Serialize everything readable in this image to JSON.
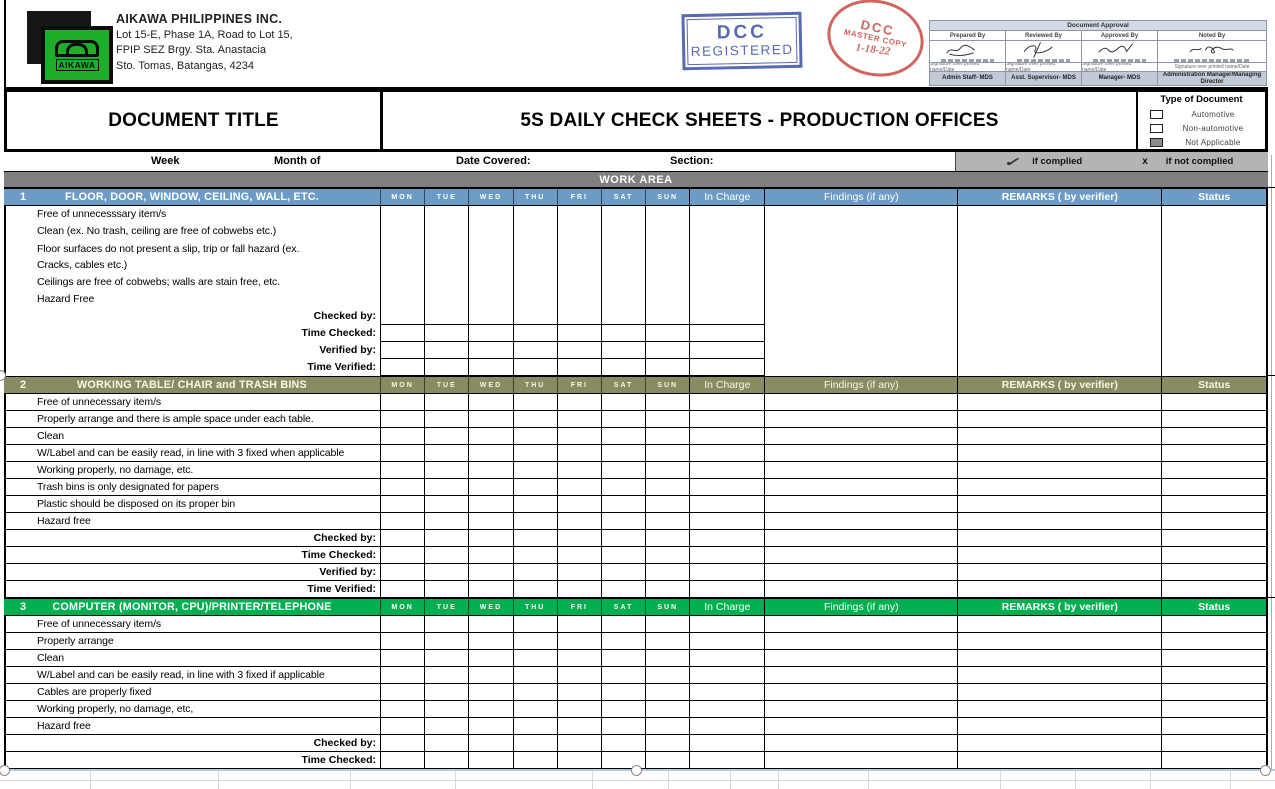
{
  "company": {
    "name": "AIKAWA PHILIPPINES INC.",
    "address_lines": [
      "Lot 15-E, Phase 1A, Road to Lot 15,",
      "FPIP SEZ Brgy. Sta. Anastacia",
      "Sto. Tomas, Batangas, 4234"
    ],
    "logo_text": "AIKAWA",
    "logo_green": "#1fae2a"
  },
  "stamps": {
    "dcc_registered": {
      "line1": "DCC",
      "line2": "REGISTERED",
      "color": "#4356aa"
    },
    "master_copy": {
      "line1": "DCC",
      "line2": "MASTER COPY",
      "date": "1-18-22",
      "color": "#cb4a42"
    }
  },
  "approval": {
    "title": "Document Approval",
    "signature_note": "Signature over printed name/Date",
    "columns": [
      {
        "role": "Prepared By",
        "position": "Admin Staff- MDS"
      },
      {
        "role": "Reviewed By",
        "position": "Asst. Supervisor- MDS"
      },
      {
        "role": "Approved By",
        "position": "Manager- MDS"
      },
      {
        "role": "Noted By",
        "position": "Administration Manager/Managing Director"
      }
    ]
  },
  "title_block": {
    "document_title_label": "DOCUMENT TITLE",
    "sheet_title": "5S DAILY CHECK SHEETS - PRODUCTION OFFICES",
    "type_of_document": {
      "title": "Type of Document",
      "options": [
        {
          "label": "Automotive",
          "checked": false
        },
        {
          "label": "Non-automotive",
          "checked": false
        },
        {
          "label": "Not Applicable",
          "checked": true
        }
      ]
    }
  },
  "info_row": {
    "week_label": "Week",
    "month_label": "Month of",
    "date_covered_label": "Date Covered:",
    "section_label": "Section:",
    "legend": {
      "check_symbol": "✓",
      "complied": "if complied",
      "x_symbol": "x",
      "not_complied": "if not complied"
    }
  },
  "work_area_label": "WORK AREA",
  "grid_headers": {
    "days": [
      "MON",
      "TUE",
      "WED",
      "THU",
      "FRI",
      "SAT",
      "SUN"
    ],
    "in_charge": "In Charge",
    "findings": "Findings (if any)",
    "remarks": "REMARKS ( by verifier)",
    "status": "Status"
  },
  "sections": [
    {
      "number": "1",
      "title": "FLOOR, DOOR, WINDOW, CEILING, WALL, ETC.",
      "color": "#6d9bc7",
      "items": [
        "Free of unnecesssary item/s",
        "Clean (ex. No trash, ceiling are free of cobwebs etc.)",
        "Floor surfaces do not present a slip,  trip or fall hazard (ex. Cracks, cables etc.)",
        "Ceilings are free of cobwebs; walls are stain free, etc.",
        "Hazard Free"
      ],
      "footer_labels": [
        "Checked by:",
        "Time Checked:",
        "Verified by:",
        "Time Verified:"
      ]
    },
    {
      "number": "2",
      "title": "WORKING TABLE/ CHAIR and TRASH BINS",
      "color": "#8b8b63",
      "items": [
        "Free of unnecessary item/s",
        "Properly arrange and there is ample space under each table.",
        "Clean",
        "W/Label and can be easily read, in line with 3 fixed when applicable",
        "Working properly, no damage, etc.",
        "Trash bins is only designated for papers",
        "Plastic should be disposed on its proper bin",
        "Hazard free"
      ],
      "footer_labels": [
        "Checked by:",
        "Time Checked:",
        "Verified by:",
        "Time Verified:"
      ]
    },
    {
      "number": "3",
      "title": "COMPUTER (MONITOR, CPU)/PRINTER/TELEPHONE",
      "color": "#00b050",
      "items": [
        "Free of unnecessary item/s",
        "Properly arrange",
        "Clean",
        "W/Label and can be easily read, in line with 3 fixed if applicable",
        "Cables are properly fixed",
        "Working properly, no damage, etc,",
        "Hazard free"
      ],
      "footer_labels": [
        "Checked by:",
        "Time Checked:"
      ]
    }
  ]
}
